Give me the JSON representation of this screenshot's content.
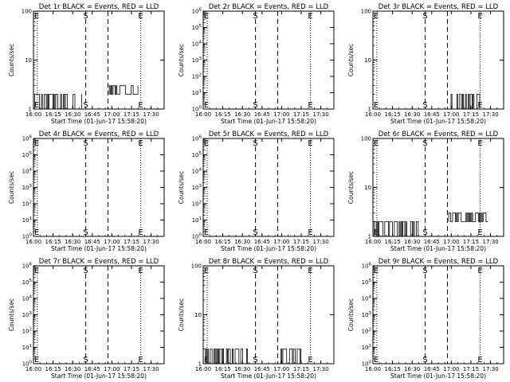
{
  "colors": {
    "background": "#ffffff",
    "foreground": "#000000",
    "lld_series": "#ff0000"
  },
  "chart_data": [
    {
      "type": "line",
      "title": "Det 1r BLACK = Events, RED = LLD",
      "xlabel": "Start Time (01-Jun-17 15:58:20)",
      "ylabel": "Counts/sec",
      "yscale": "log",
      "xlim": [
        "16:00",
        "17:40"
      ],
      "ylim": [
        1,
        100
      ],
      "x_ticks": [
        "16:00",
        "16:15",
        "16:30",
        "16:45",
        "17:00",
        "17:15",
        "17:30"
      ],
      "y_ticks": [
        "1",
        "10",
        "100"
      ],
      "markers": [
        {
          "label": "S",
          "time": "16:40",
          "style": "dashed"
        },
        {
          "label": "E",
          "time": "17:22",
          "style": "dotted"
        }
      ],
      "extra_lines": [
        {
          "time": "16:03",
          "style": "dotted"
        },
        {
          "time": "16:57",
          "style": "dashed"
        }
      ],
      "series": [
        {
          "name": "Events",
          "color": "#000000",
          "segments": [
            {
              "start": "16:01",
              "end": "16:37",
              "low": 1,
              "high": 2
            },
            {
              "start": "16:58",
              "end": "17:20",
              "low": 2,
              "high": 3
            }
          ]
        }
      ]
    },
    {
      "type": "line",
      "title": "Det 2r BLACK = Events, RED = LLD",
      "xlabel": "Start Time (01-Jun-17 15:58:20)",
      "ylabel": "Counts/sec",
      "yscale": "log",
      "xlim": [
        "16:00",
        "17:40"
      ],
      "ylim": [
        1,
        1000000
      ],
      "x_ticks": [
        "16:00",
        "16:15",
        "16:30",
        "16:45",
        "17:00",
        "17:15",
        "17:30"
      ],
      "y_ticks": [
        "10^0",
        "10^1",
        "10^2",
        "10^3",
        "10^4",
        "10^5",
        "10^6"
      ],
      "markers": [
        {
          "label": "S",
          "time": "16:40",
          "style": "dashed"
        },
        {
          "label": "E",
          "time": "17:22",
          "style": "dotted"
        }
      ],
      "extra_lines": [
        {
          "time": "16:03",
          "style": "dotted"
        },
        {
          "time": "16:57",
          "style": "dashed"
        }
      ],
      "series": []
    },
    {
      "type": "line",
      "title": "Det 3r BLACK = Events, RED = LLD",
      "xlabel": "Start Time (01-Jun-17 15:58:20)",
      "ylabel": "Counts/sec",
      "yscale": "log",
      "xlim": [
        "16:00",
        "17:40"
      ],
      "ylim": [
        1,
        100
      ],
      "x_ticks": [
        "16:00",
        "16:15",
        "16:30",
        "16:45",
        "17:00",
        "17:15",
        "17:30"
      ],
      "y_ticks": [
        "1",
        "10",
        "100"
      ],
      "markers": [
        {
          "label": "S",
          "time": "16:40",
          "style": "dashed"
        },
        {
          "label": "E",
          "time": "17:22",
          "style": "dotted"
        }
      ],
      "extra_lines": [
        {
          "time": "16:03",
          "style": "dotted"
        },
        {
          "time": "16:57",
          "style": "dashed"
        }
      ],
      "series": [
        {
          "name": "Events",
          "color": "#000000",
          "segments": [
            {
              "start": "16:34",
              "end": "16:35",
              "low": 1,
              "high": 2
            },
            {
              "start": "16:59",
              "end": "17:22",
              "low": 1,
              "high": 2
            }
          ]
        }
      ]
    },
    {
      "type": "line",
      "title": "Det 4r BLACK = Events, RED = LLD",
      "xlabel": "Start Time (01-Jun-17 15:58:20)",
      "ylabel": "Counts/sec",
      "yscale": "log",
      "xlim": [
        "16:00",
        "17:40"
      ],
      "ylim": [
        1,
        1000000
      ],
      "x_ticks": [
        "16:00",
        "16:15",
        "16:30",
        "16:45",
        "17:00",
        "17:15",
        "17:30"
      ],
      "y_ticks": [
        "10^0",
        "10^1",
        "10^2",
        "10^3",
        "10^4",
        "10^5",
        "10^6"
      ],
      "markers": [
        {
          "label": "S",
          "time": "16:40",
          "style": "dashed"
        },
        {
          "label": "E",
          "time": "17:22",
          "style": "dotted"
        }
      ],
      "extra_lines": [
        {
          "time": "16:03",
          "style": "dotted"
        },
        {
          "time": "16:57",
          "style": "dashed"
        }
      ],
      "series": []
    },
    {
      "type": "line",
      "title": "Det 5r BLACK = Events, RED = LLD",
      "xlabel": "Start Time (01-Jun-17 15:58:20)",
      "ylabel": "Counts/sec",
      "yscale": "log",
      "xlim": [
        "16:00",
        "17:40"
      ],
      "ylim": [
        1,
        1000000
      ],
      "x_ticks": [
        "16:00",
        "16:15",
        "16:30",
        "16:45",
        "17:00",
        "17:15",
        "17:30"
      ],
      "y_ticks": [
        "10^0",
        "10^1",
        "10^2",
        "10^3",
        "10^4",
        "10^5",
        "10^6"
      ],
      "markers": [
        {
          "label": "S",
          "time": "16:40",
          "style": "dashed"
        },
        {
          "label": "E",
          "time": "17:22",
          "style": "dotted"
        }
      ],
      "extra_lines": [
        {
          "time": "16:03",
          "style": "dotted"
        },
        {
          "time": "16:57",
          "style": "dashed"
        }
      ],
      "series": []
    },
    {
      "type": "line",
      "title": "Det 6r BLACK = Events, RED = LLD",
      "xlabel": "Start Time (01-Jun-17 15:58:20)",
      "ylabel": "Counts/sec",
      "yscale": "log",
      "xlim": [
        "16:00",
        "17:40"
      ],
      "ylim": [
        1,
        100
      ],
      "x_ticks": [
        "16:00",
        "16:15",
        "16:30",
        "16:45",
        "17:00",
        "17:15",
        "17:30"
      ],
      "y_ticks": [
        "1",
        "10",
        "100"
      ],
      "markers": [
        {
          "label": "S",
          "time": "16:40",
          "style": "dashed"
        },
        {
          "label": "E",
          "time": "17:22",
          "style": "dotted"
        }
      ],
      "extra_lines": [
        {
          "time": "16:03",
          "style": "dotted"
        },
        {
          "time": "16:57",
          "style": "dashed"
        }
      ],
      "series": [
        {
          "name": "Events",
          "color": "#000000",
          "segments": [
            {
              "start": "16:01",
              "end": "16:37",
              "low": 1,
              "high": 2
            },
            {
              "start": "16:58",
              "end": "17:28",
              "low": 2,
              "high": 3
            }
          ]
        }
      ]
    },
    {
      "type": "line",
      "title": "Det 7r BLACK = Events, RED = LLD",
      "xlabel": "Start Time (01-Jun-17 15:58:20)",
      "ylabel": "Counts/sec",
      "yscale": "log",
      "xlim": [
        "16:00",
        "17:40"
      ],
      "ylim": [
        1,
        1000000
      ],
      "x_ticks": [
        "16:00",
        "16:15",
        "16:30",
        "16:45",
        "17:00",
        "17:15",
        "17:30"
      ],
      "y_ticks": [
        "10^0",
        "10^1",
        "10^2",
        "10^3",
        "10^4",
        "10^5",
        "10^6"
      ],
      "markers": [
        {
          "label": "S",
          "time": "16:40",
          "style": "dashed"
        },
        {
          "label": "E",
          "time": "17:22",
          "style": "dotted"
        }
      ],
      "extra_lines": [
        {
          "time": "16:03",
          "style": "dotted"
        },
        {
          "time": "16:57",
          "style": "dashed"
        }
      ],
      "series": []
    },
    {
      "type": "line",
      "title": "Det 8r BLACK = Events, RED = LLD",
      "xlabel": "Start Time (01-Jun-17 15:58:20)",
      "ylabel": "Counts/sec",
      "yscale": "log",
      "xlim": [
        "16:00",
        "17:40"
      ],
      "ylim": [
        1,
        100
      ],
      "x_ticks": [
        "16:00",
        "16:15",
        "16:30",
        "16:45",
        "17:00",
        "17:15",
        "17:30"
      ],
      "y_ticks": [
        "1",
        "10",
        "100"
      ],
      "markers": [
        {
          "label": "S",
          "time": "16:40",
          "style": "dashed"
        },
        {
          "label": "E",
          "time": "17:22",
          "style": "dotted"
        }
      ],
      "extra_lines": [
        {
          "time": "16:03",
          "style": "dotted"
        },
        {
          "time": "16:57",
          "style": "dashed"
        }
      ],
      "series": [
        {
          "name": "Events",
          "color": "#000000",
          "segments": [
            {
              "start": "16:01",
              "end": "16:35",
              "low": 1,
              "high": 2
            },
            {
              "start": "16:58",
              "end": "17:15",
              "low": 1,
              "high": 2
            }
          ]
        }
      ]
    },
    {
      "type": "line",
      "title": "Det 9r BLACK = Events, RED = LLD",
      "xlabel": "Start Time (01-Jun-17 15:58:20)",
      "ylabel": "Counts/sec",
      "yscale": "log",
      "xlim": [
        "16:00",
        "17:40"
      ],
      "ylim": [
        1,
        1000000
      ],
      "x_ticks": [
        "16:00",
        "16:15",
        "16:30",
        "16:45",
        "17:00",
        "17:15",
        "17:30"
      ],
      "y_ticks": [
        "10^0",
        "10^1",
        "10^2",
        "10^3",
        "10^4",
        "10^5",
        "10^6"
      ],
      "markers": [
        {
          "label": "S",
          "time": "16:40",
          "style": "dashed"
        },
        {
          "label": "E",
          "time": "17:22",
          "style": "dotted"
        }
      ],
      "extra_lines": [
        {
          "time": "16:03",
          "style": "dotted"
        },
        {
          "time": "16:57",
          "style": "dashed"
        }
      ],
      "series": []
    }
  ]
}
